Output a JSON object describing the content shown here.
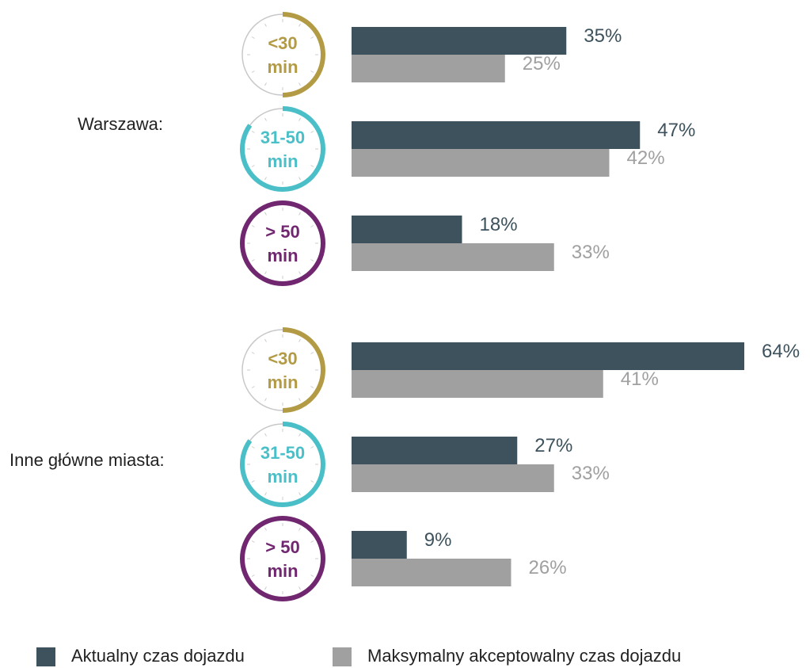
{
  "chart_data": {
    "type": "bar",
    "orientation": "horizontal",
    "groups": [
      "Warszawa:",
      "Inne główne miasta:"
    ],
    "categories": [
      [
        "<30",
        "min"
      ],
      [
        "31-50",
        "min"
      ],
      [
        "> 50",
        "min"
      ],
      [
        "<30",
        "min"
      ],
      [
        "31-50",
        "min"
      ],
      [
        "> 50",
        "min"
      ]
    ],
    "category_colors": [
      "#b39b45",
      "#4bbfc8",
      "#70276f",
      "#b39b45",
      "#4bbfc8",
      "#70276f"
    ],
    "series": [
      {
        "name": "Aktualny czas dojazdu",
        "color": "#3d525c",
        "values": [
          35,
          47,
          18,
          64,
          27,
          9
        ],
        "value_labels": [
          "35%",
          "47%",
          "18%",
          "64%",
          "27%",
          "9%"
        ]
      },
      {
        "name": "Maksymalny akceptowalny czas dojazdu",
        "color": "#a0a0a0",
        "values": [
          25,
          42,
          33,
          41,
          33,
          26
        ],
        "value_labels": [
          "25%",
          "42%",
          "33%",
          "41%",
          "33%",
          "26%"
        ]
      }
    ],
    "legend": "bottom"
  }
}
